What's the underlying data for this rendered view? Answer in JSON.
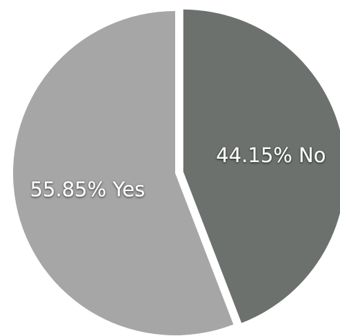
{
  "chart_data": {
    "type": "pie",
    "title": "",
    "slices": [
      {
        "label": "No",
        "value": 44.15,
        "display": "44.15% No",
        "color": "#6c716e"
      },
      {
        "label": "Yes",
        "value": 55.85,
        "display": "55.85% Yes",
        "color": "#a6a6a6"
      }
    ],
    "start_angle": "12 o'clock",
    "direction": "clockwise",
    "exploded_slice": "No",
    "legend": "none"
  }
}
